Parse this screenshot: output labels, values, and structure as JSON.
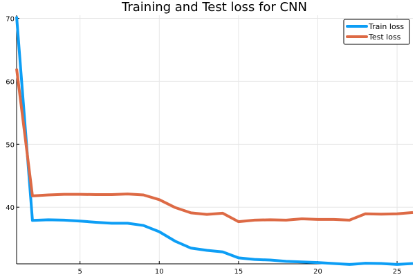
{
  "chart_data": {
    "type": "line",
    "title": "Training and Test loss for CNN",
    "xlabel": "",
    "ylabel": "",
    "xlim": [
      1,
      26
    ],
    "ylim": [
      31,
      70.5
    ],
    "xticks": [
      5,
      10,
      15,
      20,
      25
    ],
    "yticks": [
      40,
      50,
      60,
      70
    ],
    "grid": true,
    "legend_position": "top-right",
    "x": [
      1,
      2,
      3,
      4,
      5,
      6,
      7,
      8,
      9,
      10,
      11,
      12,
      13,
      14,
      15,
      16,
      17,
      18,
      19,
      20,
      21,
      22,
      23,
      24,
      25,
      26
    ],
    "series": [
      {
        "name": "Train loss",
        "color": "#0d9ef5",
        "values": [
          70.3,
          37.9,
          38.0,
          37.95,
          37.8,
          37.6,
          37.45,
          37.45,
          37.1,
          36.1,
          34.6,
          33.5,
          33.15,
          32.9,
          31.95,
          31.7,
          31.6,
          31.4,
          31.3,
          31.2,
          31.05,
          30.9,
          31.1,
          31.05,
          30.9,
          31.05
        ]
      },
      {
        "name": "Test loss",
        "color": "#dd6a45",
        "values": [
          62.0,
          41.8,
          41.95,
          42.05,
          42.05,
          42.0,
          42.0,
          42.1,
          41.95,
          41.2,
          39.95,
          39.1,
          38.85,
          39.05,
          37.7,
          37.95,
          38.0,
          37.95,
          38.15,
          38.05,
          38.05,
          37.95,
          38.95,
          38.9,
          38.95,
          39.15
        ]
      }
    ]
  }
}
